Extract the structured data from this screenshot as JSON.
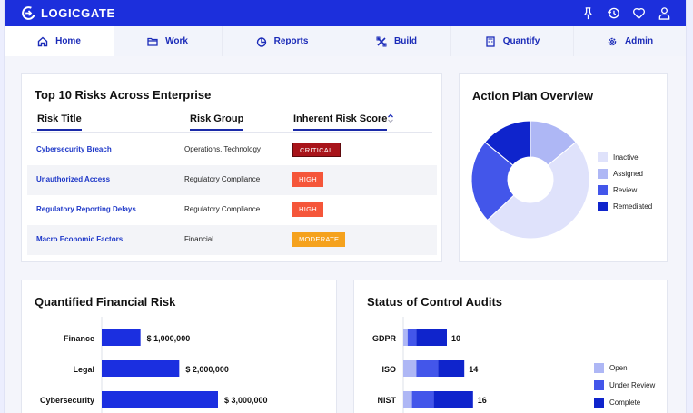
{
  "brand": {
    "name": "LOGICGATE"
  },
  "top_icons": [
    "pin-icon",
    "history-icon",
    "heart-icon",
    "user-icon"
  ],
  "nav": [
    {
      "label": "Home",
      "icon": "home-icon",
      "active": true
    },
    {
      "label": "Work",
      "icon": "folder-icon"
    },
    {
      "label": "Reports",
      "icon": "pie-icon"
    },
    {
      "label": "Build",
      "icon": "tools-icon"
    },
    {
      "label": "Quantify",
      "icon": "calculator-icon"
    },
    {
      "label": "Admin",
      "icon": "gear-icon"
    }
  ],
  "risks": {
    "title": "Top 10 Risks Across Enterprise",
    "columns": [
      "Risk Title",
      "Risk Group",
      "Inherent Risk Score"
    ],
    "rows": [
      {
        "title": "Cybersecurity Breach",
        "group": "Operations, Technology",
        "score": "CRITICAL",
        "color": "#a8141a"
      },
      {
        "title": "Unauthorized Access",
        "group": "Regulatory Compliance",
        "score": "HIGH",
        "color": "#f5563a"
      },
      {
        "title": "Regulatory Reporting Delays",
        "group": "Regulatory Compliance",
        "score": "HIGH",
        "color": "#f5563a"
      },
      {
        "title": "Macro Economic Factors",
        "group": "Financial",
        "score": "MODERATE",
        "color": "#f5a21e"
      }
    ]
  },
  "action_plan": {
    "title": "Action Plan Overview",
    "legend": [
      {
        "label": "Inactive",
        "color": "#dfe2fb"
      },
      {
        "label": "Assigned",
        "color": "#aeb7f5"
      },
      {
        "label": "Review",
        "color": "#4356ea"
      },
      {
        "label": "Remediated",
        "color": "#0f24cc"
      }
    ]
  },
  "financial": {
    "title": "Quantified Financial Risk",
    "color": "#1b2fe0"
  },
  "audits": {
    "title": "Status of Control Audits",
    "legend": [
      {
        "label": "Open",
        "color": "#aeb7f5"
      },
      {
        "label": "Under Review",
        "color": "#4356ea"
      },
      {
        "label": "Complete",
        "color": "#0f24cc"
      }
    ]
  },
  "chart_data": [
    {
      "type": "pie",
      "title": "Action Plan Overview",
      "categories": [
        "Inactive",
        "Assigned",
        "Review",
        "Remediated"
      ],
      "values": [
        49,
        14,
        23,
        14
      ]
    },
    {
      "type": "bar",
      "title": "Quantified Financial Risk",
      "categories": [
        "Finance",
        "Legal",
        "Cybersecurity"
      ],
      "values": [
        1000000,
        2000000,
        3000000
      ],
      "value_labels": [
        "$ 1,000,000",
        "$ 2,000,000",
        "$ 3,000,000"
      ]
    },
    {
      "type": "bar",
      "title": "Status of Control Audits",
      "categories": [
        "GDPR",
        "ISO",
        "NIST"
      ],
      "series": [
        {
          "name": "Open",
          "values": [
            1,
            3,
            2
          ]
        },
        {
          "name": "Under Review",
          "values": [
            2,
            5,
            5
          ]
        },
        {
          "name": "Complete",
          "values": [
            7,
            6,
            9
          ]
        }
      ],
      "totals": [
        10,
        14,
        16
      ]
    }
  ]
}
